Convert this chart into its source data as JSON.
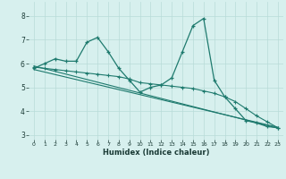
{
  "xlabel": "Humidex (Indice chaleur)",
  "bg_color": "#d7f0ee",
  "grid_color": "#b8dbd8",
  "line_color": "#1e7a6e",
  "xlim": [
    -0.5,
    23.5
  ],
  "ylim": [
    2.8,
    8.6
  ],
  "xticks": [
    0,
    1,
    2,
    3,
    4,
    5,
    6,
    7,
    8,
    9,
    10,
    11,
    12,
    13,
    14,
    15,
    16,
    17,
    18,
    19,
    20,
    21,
    22,
    23
  ],
  "yticks": [
    3,
    4,
    5,
    6,
    7,
    8
  ],
  "series1_x": [
    0,
    1,
    2,
    3,
    4,
    5,
    6,
    7,
    8,
    9,
    10,
    11,
    12,
    13,
    14,
    15,
    16,
    17,
    18,
    19,
    20,
    21,
    22,
    23
  ],
  "series1_y": [
    5.8,
    6.0,
    6.2,
    6.1,
    6.1,
    6.9,
    7.1,
    6.5,
    5.8,
    5.3,
    4.8,
    5.0,
    5.1,
    5.4,
    6.5,
    7.6,
    7.9,
    5.3,
    4.6,
    4.1,
    3.6,
    3.5,
    3.35,
    3.3
  ],
  "series2_x": [
    0,
    1,
    2,
    3,
    4,
    5,
    6,
    7,
    8,
    9,
    10,
    11,
    12,
    13,
    14,
    15,
    16,
    17,
    18,
    19,
    20,
    21,
    22,
    23
  ],
  "series2_y": [
    5.85,
    5.8,
    5.75,
    5.7,
    5.65,
    5.6,
    5.55,
    5.5,
    5.45,
    5.35,
    5.2,
    5.15,
    5.1,
    5.05,
    5.0,
    4.95,
    4.85,
    4.75,
    4.6,
    4.4,
    4.1,
    3.8,
    3.55,
    3.3
  ],
  "series3_x": [
    0,
    23
  ],
  "series3_y": [
    5.9,
    3.28
  ],
  "series4_x": [
    0,
    23
  ],
  "series4_y": [
    5.75,
    3.32
  ]
}
